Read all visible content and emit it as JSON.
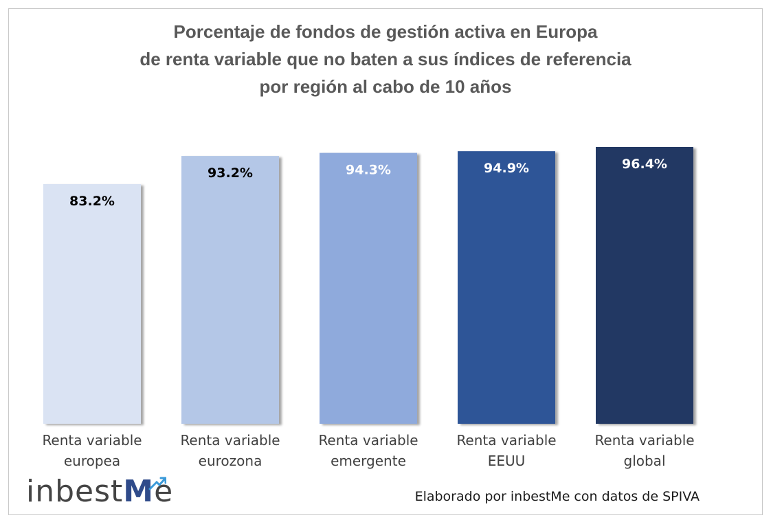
{
  "chart_data": {
    "type": "bar",
    "title_lines": [
      "Porcentaje de fondos de gestión activa en Europa",
      "de renta variable que no baten a sus índices de referencia",
      "por región al cabo de 10 años"
    ],
    "categories": [
      [
        "Renta variable",
        "europea"
      ],
      [
        "Renta variable",
        "eurozona"
      ],
      [
        "Renta variable",
        "emergente"
      ],
      [
        "Renta variable",
        "EEUU"
      ],
      [
        "Renta variable",
        "global"
      ]
    ],
    "values": [
      83.2,
      93.2,
      94.3,
      94.9,
      96.4
    ],
    "value_labels": [
      "83.2%",
      "93.2%",
      "94.3%",
      "94.9%",
      "96.4%"
    ],
    "bar_colors": [
      "#dae3f3",
      "#b4c7e7",
      "#8faadc",
      "#2f5597",
      "#203864"
    ],
    "label_colors": [
      "#000000",
      "#000000",
      "#ffffff",
      "#ffffff",
      "#ffffff"
    ],
    "ylim": [
      0,
      100
    ],
    "grid": false,
    "legend": "none"
  },
  "logo": {
    "text_prefix": "inbest",
    "text_m": "M",
    "text_e": "e"
  },
  "credit": "Elaborado por inbestMe con datos de SPIVA"
}
